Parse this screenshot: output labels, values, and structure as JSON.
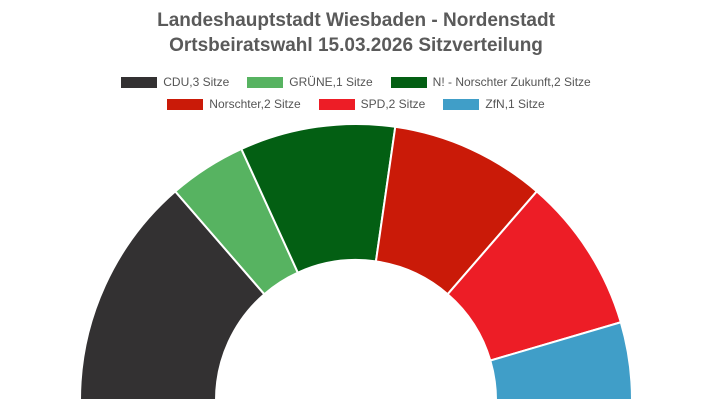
{
  "chart_data": {
    "type": "pie",
    "subtype": "half-donut",
    "title": "Landeshauptstadt Wiesbaden - Nordenstadt",
    "subtitle": "Ortsbeiratswahl 15.03.2026 Sitzverteilung",
    "legend_position": "top",
    "unit": "Sitze",
    "slices": [
      {
        "label": "CDU",
        "value": 3,
        "color": "#333132",
        "legend": "CDU,3 Sitze"
      },
      {
        "label": "GRÜNE",
        "value": 1,
        "color": "#57b361",
        "legend": "GRÜNE,1 Sitze"
      },
      {
        "label": "N! - Norschter Zukunft",
        "value": 2,
        "color": "#035f13",
        "legend": "N! - Norschter Zukunft,2 Sitze"
      },
      {
        "label": "Norschter",
        "value": 2,
        "color": "#ca1a08",
        "legend": "Norschter,2 Sitze"
      },
      {
        "label": "SPD",
        "value": 2,
        "color": "#ed1d26",
        "legend": "SPD,2 Sitze"
      },
      {
        "label": "ZfN",
        "value": 1,
        "color": "#409ec8",
        "legend": "ZfN,1 Sitze"
      }
    ]
  }
}
